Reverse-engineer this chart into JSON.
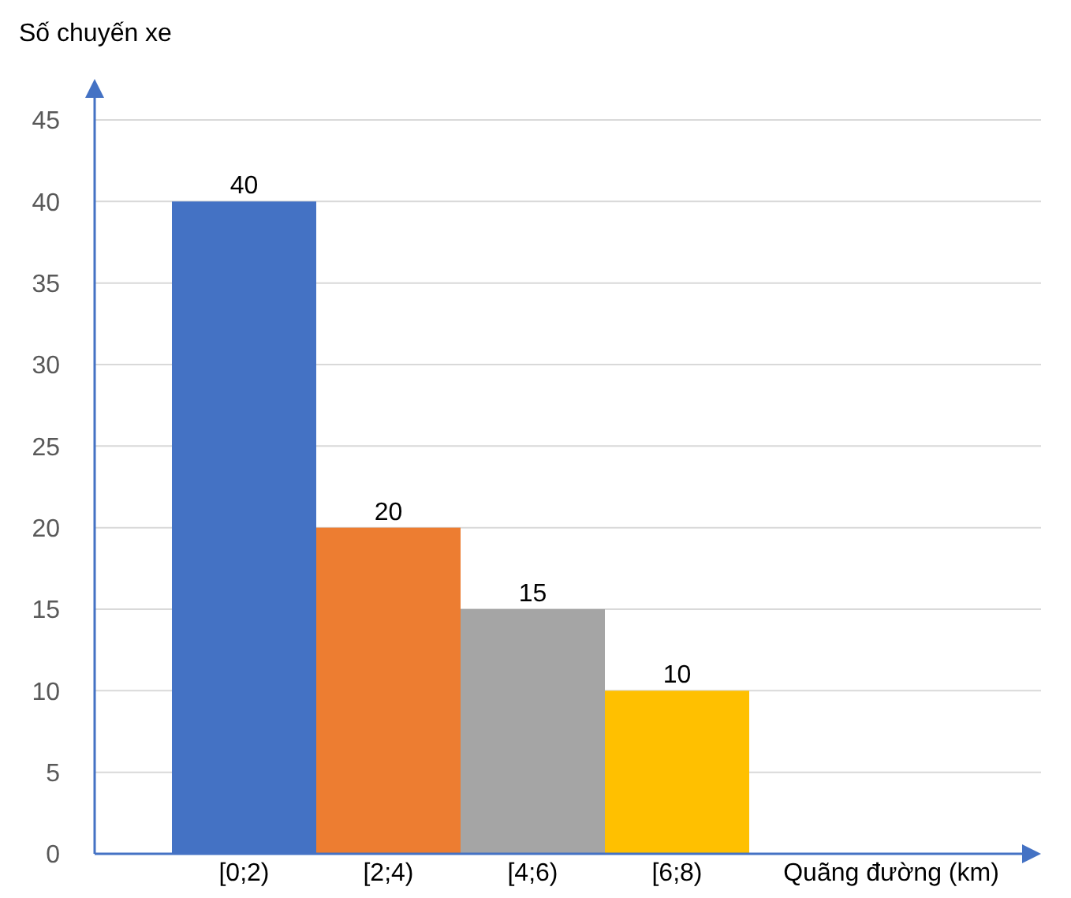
{
  "chart_data": {
    "type": "bar",
    "ylabel": "Số chuyến xe",
    "xlabel": "Quãng đường (km)",
    "categories": [
      "[0;2)",
      "[2;4)",
      "[4;6)",
      "[6;8)"
    ],
    "values": [
      40,
      20,
      15,
      10
    ],
    "colors": [
      "#4472c4",
      "#ed7d31",
      "#a5a5a5",
      "#ffc000"
    ],
    "ylim": [
      0,
      45
    ],
    "yticks": [
      0,
      5,
      10,
      15,
      20,
      25,
      30,
      35,
      40,
      45
    ],
    "grid": true,
    "data_labels": true
  }
}
